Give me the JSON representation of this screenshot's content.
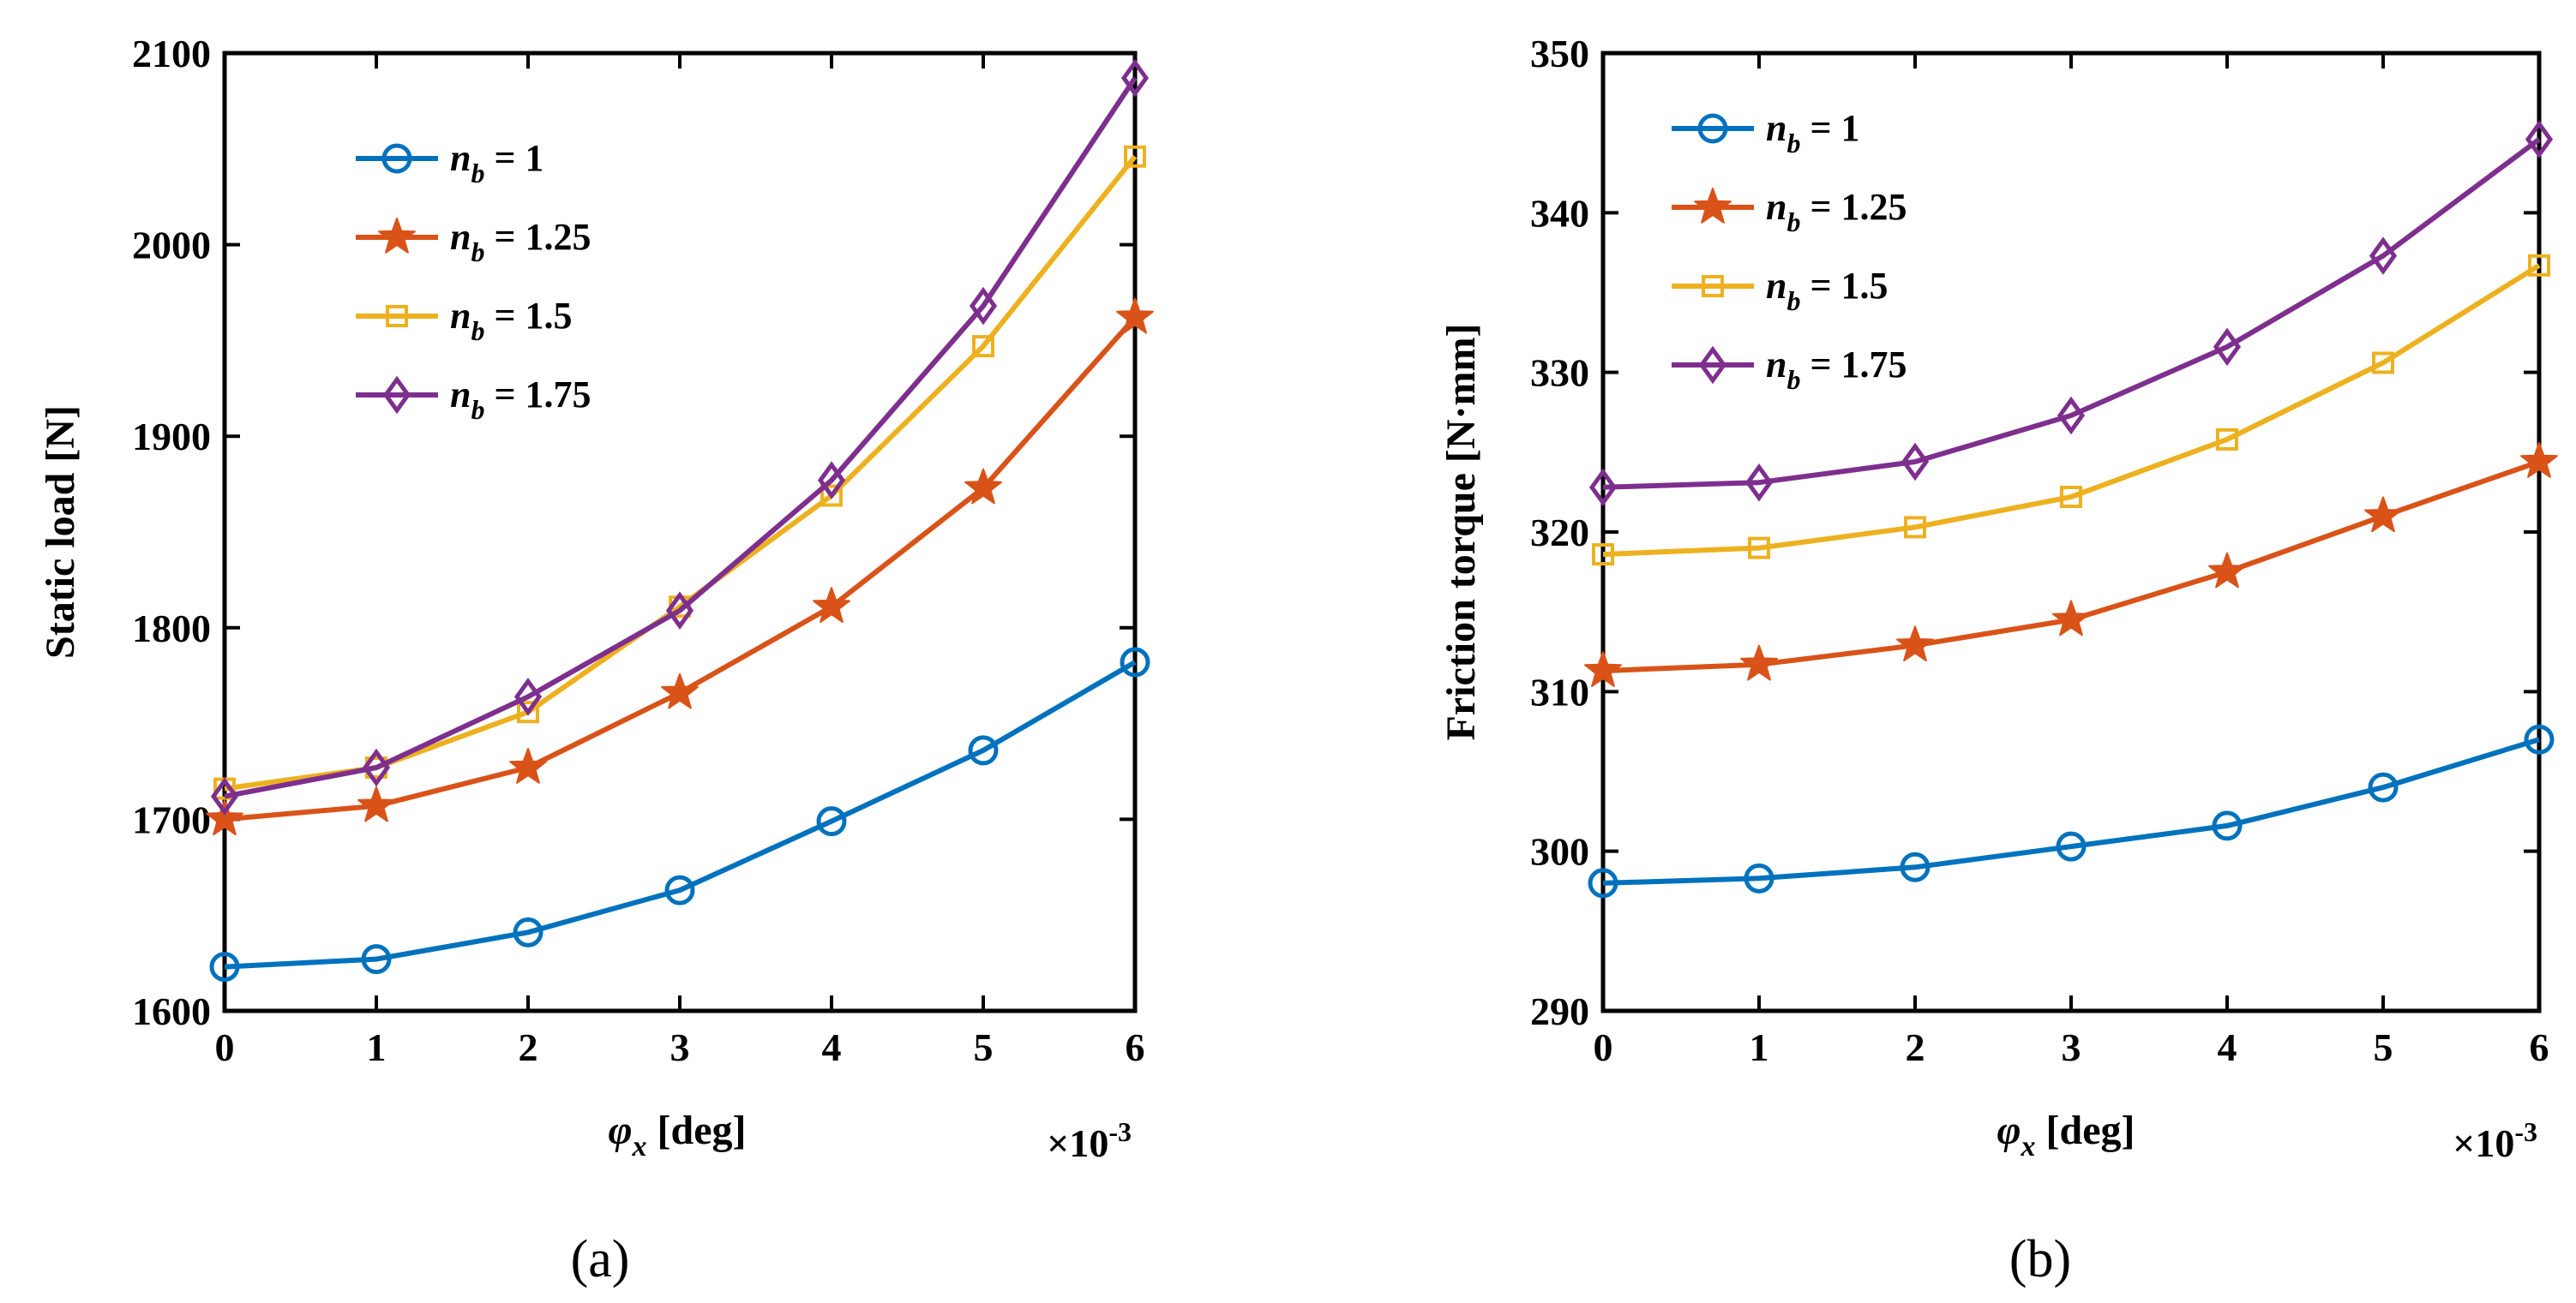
{
  "chart_data": [
    {
      "type": "line",
      "panel_label": "(a)",
      "title": "",
      "xlabel": {
        "symbol": "φ",
        "sub": "x",
        "unit": " [deg]"
      },
      "ylabel": "Static load [N]",
      "x_multiplier": {
        "base": "×10",
        "exp": "-3"
      },
      "xlim": [
        0,
        6
      ],
      "ylim": [
        1600,
        2100
      ],
      "xticks": [
        "0",
        "1",
        "2",
        "3",
        "4",
        "5",
        "6"
      ],
      "yticks": [
        "1600",
        "1700",
        "1800",
        "1900",
        "2000",
        "2100"
      ],
      "x": [
        0,
        1,
        2,
        3,
        4,
        5,
        6
      ],
      "legend_position": "top-left",
      "series": [
        {
          "prefix": "n",
          "sub": "b",
          "suffix": " = 1",
          "marker": "circle",
          "color": "#0072BD",
          "values": [
            1623,
            1627,
            1641,
            1663,
            1699,
            1736,
            1782
          ]
        },
        {
          "prefix": "n",
          "sub": "b",
          "suffix": " = 1.25",
          "marker": "star",
          "color": "#D95319",
          "values": [
            1700,
            1707,
            1727,
            1766,
            1811,
            1873,
            1962
          ]
        },
        {
          "prefix": "n",
          "sub": "b",
          "suffix": " = 1.5",
          "marker": "square",
          "color": "#EDB120",
          "values": [
            1716,
            1727,
            1756,
            1811,
            1869,
            1947,
            2046
          ]
        },
        {
          "prefix": "n",
          "sub": "b",
          "suffix": " = 1.75",
          "marker": "diamond",
          "color": "#7E2F8E",
          "values": [
            1712,
            1727,
            1764,
            1809,
            1877,
            1968,
            2087
          ]
        }
      ]
    },
    {
      "type": "line",
      "panel_label": "(b)",
      "title": "",
      "xlabel": {
        "symbol": "φ",
        "sub": "x",
        "unit": " [deg]"
      },
      "ylabel": "Friction torque [N·mm]",
      "x_multiplier": {
        "base": "×10",
        "exp": "-3"
      },
      "xlim": [
        0,
        6
      ],
      "ylim": [
        290,
        350
      ],
      "xticks": [
        "0",
        "1",
        "2",
        "3",
        "4",
        "5",
        "6"
      ],
      "yticks": [
        "290",
        "300",
        "310",
        "320",
        "330",
        "340",
        "350"
      ],
      "x": [
        0,
        1,
        2,
        3,
        4,
        5,
        6
      ],
      "legend_position": "top-left",
      "series": [
        {
          "prefix": "n",
          "sub": "b",
          "suffix": " = 1",
          "marker": "circle",
          "color": "#0072BD",
          "values": [
            298.0,
            298.3,
            299.0,
            300.3,
            301.6,
            304.0,
            307.0
          ]
        },
        {
          "prefix": "n",
          "sub": "b",
          "suffix": " = 1.25",
          "marker": "star",
          "color": "#D95319",
          "values": [
            311.3,
            311.7,
            312.9,
            314.5,
            317.5,
            321.0,
            324.4
          ]
        },
        {
          "prefix": "n",
          "sub": "b",
          "suffix": " = 1.5",
          "marker": "square",
          "color": "#EDB120",
          "values": [
            318.6,
            319.0,
            320.3,
            322.2,
            325.8,
            330.6,
            336.7
          ]
        },
        {
          "prefix": "n",
          "sub": "b",
          "suffix": " = 1.75",
          "marker": "diamond",
          "color": "#7E2F8E",
          "values": [
            322.8,
            323.1,
            324.4,
            327.3,
            331.6,
            337.3,
            344.6
          ]
        }
      ]
    }
  ]
}
